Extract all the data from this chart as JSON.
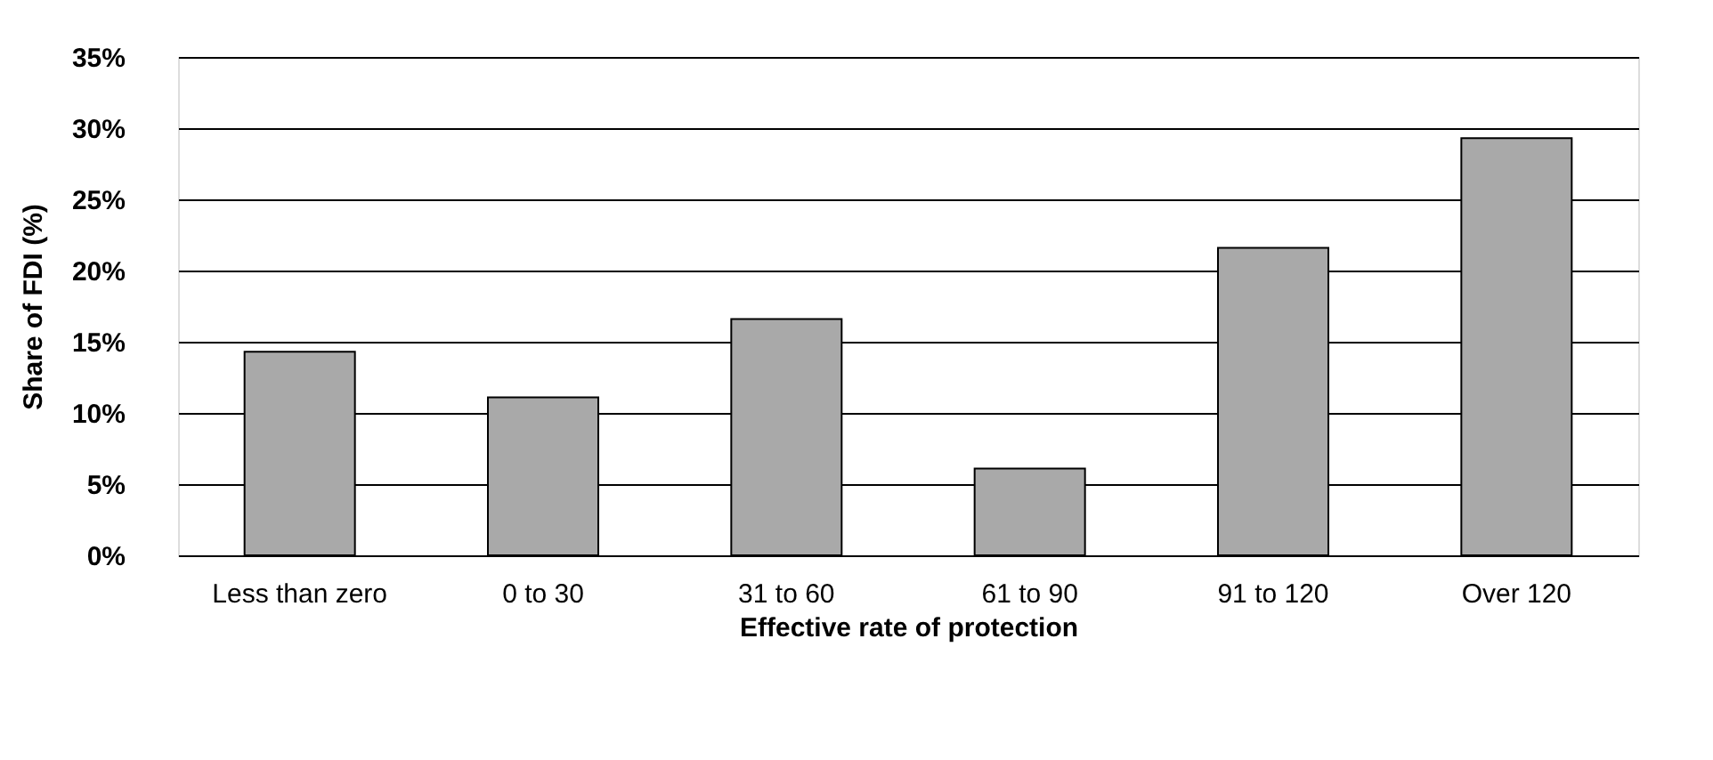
{
  "chart_data": {
    "type": "bar",
    "xlabel": "Effective rate of protection",
    "ylabel": "Share of FDI (%)",
    "categories": [
      "Less than zero",
      "0 to 30",
      "31 to 60",
      "61 to 90",
      "91 to 120",
      "Over 120"
    ],
    "values": [
      14.3,
      11.1,
      16.6,
      6.1,
      21.6,
      29.3
    ],
    "color": "#a9a9a9",
    "ylim": [
      0,
      35
    ],
    "yticks": [
      {
        "value": 0,
        "label": "0%"
      },
      {
        "value": 5,
        "label": "5%"
      },
      {
        "value": 10,
        "label": "10%"
      },
      {
        "value": 15,
        "label": "15%"
      },
      {
        "value": 20,
        "label": "20%"
      },
      {
        "value": 25,
        "label": "25%"
      },
      {
        "value": 30,
        "label": "30%"
      },
      {
        "value": 35,
        "label": "35%"
      }
    ],
    "grid": "y"
  }
}
